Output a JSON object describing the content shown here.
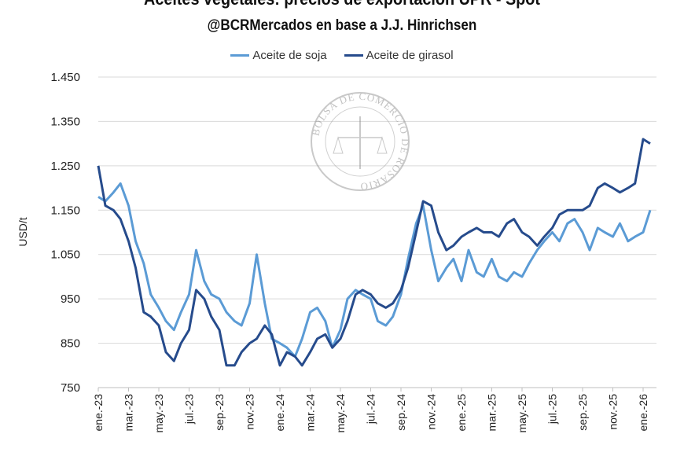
{
  "chart_data": {
    "type": "line",
    "title": "Aceites vegetales: precios de exportación UPR - Spot",
    "subtitle": "@BCRMercados en base a J.J. Hinrichsen",
    "xlabel": "",
    "ylabel": "USD/t",
    "ylim": [
      750,
      1450
    ],
    "yticks": [
      "750",
      "850",
      "950",
      "1.050",
      "1.150",
      "1.250",
      "1.350",
      "1.450"
    ],
    "ytick_values": [
      750,
      850,
      950,
      1050,
      1150,
      1250,
      1350,
      1450
    ],
    "xticks": [
      "ene.-23",
      "mar.-23",
      "may.-23",
      "jul.-23",
      "sep.-23",
      "nov.-23",
      "ene.-24",
      "mar.-24",
      "may.-24",
      "jul.-24",
      "sep.-24",
      "nov.-24",
      "ene.-25",
      "mar.-25",
      "may.-25",
      "jul.-25",
      "sep.-25",
      "nov.-25",
      "ene.-26"
    ],
    "grid": true,
    "legend_position": "top",
    "watermark": "BOLSA DE COMERCIO DE ROSARIO",
    "x": [
      "2023-01-01",
      "2023-01-15",
      "2023-02-01",
      "2023-02-15",
      "2023-03-01",
      "2023-03-15",
      "2023-04-01",
      "2023-04-15",
      "2023-05-01",
      "2023-05-15",
      "2023-06-01",
      "2023-06-15",
      "2023-07-01",
      "2023-07-15",
      "2023-08-01",
      "2023-08-15",
      "2023-09-01",
      "2023-09-15",
      "2023-10-01",
      "2023-10-15",
      "2023-11-01",
      "2023-11-15",
      "2023-12-01",
      "2023-12-15",
      "2024-01-01",
      "2024-01-15",
      "2024-02-01",
      "2024-02-15",
      "2024-03-01",
      "2024-03-15",
      "2024-04-01",
      "2024-04-15",
      "2024-05-01",
      "2024-05-15",
      "2024-06-01",
      "2024-06-15",
      "2024-07-01",
      "2024-07-15",
      "2024-08-01",
      "2024-08-15",
      "2024-09-01",
      "2024-09-15",
      "2024-10-01",
      "2024-10-15",
      "2024-11-01",
      "2024-11-15",
      "2024-12-01",
      "2024-12-15",
      "2025-01-01",
      "2025-01-15",
      "2025-02-01",
      "2025-02-15",
      "2025-03-01",
      "2025-03-15",
      "2025-04-01",
      "2025-04-15",
      "2025-05-01",
      "2025-05-15",
      "2025-06-01",
      "2025-06-15",
      "2025-07-01",
      "2025-07-15",
      "2025-08-01",
      "2025-08-15",
      "2025-09-01",
      "2025-09-15",
      "2025-10-01",
      "2025-10-15",
      "2025-11-01",
      "2025-11-15",
      "2025-12-01",
      "2025-12-15",
      "2026-01-01",
      "2026-01-15"
    ],
    "series": [
      {
        "name": "Aceite de soja",
        "color": "#5b9bd5",
        "values": [
          1180,
          1170,
          1190,
          1210,
          1160,
          1080,
          1030,
          960,
          930,
          900,
          880,
          920,
          960,
          1060,
          990,
          960,
          950,
          920,
          900,
          890,
          940,
          1050,
          940,
          860,
          850,
          840,
          820,
          860,
          920,
          930,
          900,
          840,
          880,
          950,
          970,
          960,
          950,
          900,
          890,
          910,
          960,
          1040,
          1120,
          1160,
          1060,
          990,
          1020,
          1040,
          990,
          1060,
          1010,
          1000,
          1040,
          1000,
          990,
          1010,
          1000,
          1030,
          1060,
          1080,
          1100,
          1080,
          1120,
          1130,
          1100,
          1060,
          1110,
          1100,
          1090,
          1120,
          1080,
          1090,
          1100,
          1150
        ]
      },
      {
        "name": "Aceite de girasol",
        "color": "#264b8c",
        "values": [
          1250,
          1160,
          1150,
          1130,
          1080,
          1020,
          920,
          910,
          890,
          830,
          810,
          850,
          880,
          970,
          950,
          910,
          880,
          800,
          800,
          830,
          850,
          860,
          890,
          870,
          800,
          830,
          820,
          800,
          830,
          860,
          870,
          840,
          860,
          900,
          960,
          970,
          960,
          940,
          930,
          940,
          970,
          1020,
          1100,
          1170,
          1160,
          1100,
          1060,
          1070,
          1090,
          1100,
          1110,
          1100,
          1100,
          1090,
          1120,
          1130,
          1100,
          1090,
          1070,
          1090,
          1110,
          1140,
          1150,
          1150,
          1150,
          1160,
          1200,
          1210,
          1200,
          1190,
          1200,
          1210,
          1310,
          1300
        ]
      }
    ]
  }
}
